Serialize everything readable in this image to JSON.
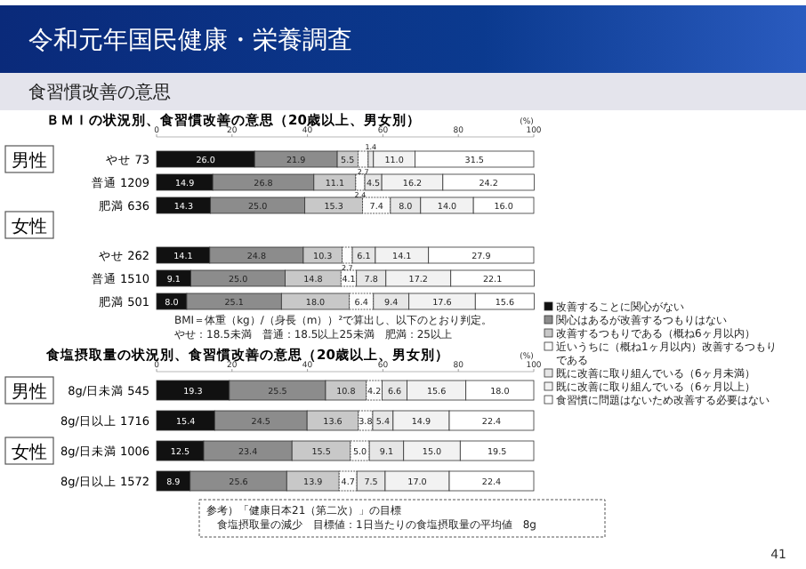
{
  "chart_data": [
    {
      "type": "bar",
      "orientation": "horizontal",
      "stacked": true,
      "legend": "right",
      "title": "ＢＭＩの状況別、食習慣改善の意思（20歳以上、男女別）",
      "xlabel": "(%)",
      "xlim": [
        0,
        100
      ],
      "xticks": [
        0,
        20,
        40,
        60,
        80,
        100
      ],
      "categories": [
        "やせ 73",
        "普通 1209",
        "肥満 636",
        "やせ 262",
        "普通 1510",
        "肥満 501"
      ],
      "series": [
        {
          "name": "改善することに関心がない",
          "color": "#111111",
          "values": [
            26.0,
            14.9,
            14.3,
            14.1,
            9.1,
            8.0
          ],
          "value_labels": [
            "26.0",
            "14.9",
            "14.3",
            "14.1",
            "9.1",
            "8.0"
          ]
        },
        {
          "name": "関心はあるが改善するつもりはない",
          "color": "#8c8c8c",
          "values": [
            21.9,
            26.8,
            25.0,
            24.8,
            25.0,
            25.1
          ],
          "value_labels": [
            "21.9",
            "26.8",
            "25.0",
            "24.8",
            "25.0",
            "25.1"
          ]
        },
        {
          "name": "改善するつもりである（概ね6ヶ月以内）",
          "color": "#c8c8c8",
          "values": [
            5.5,
            11.1,
            15.3,
            10.3,
            14.8,
            18.0
          ],
          "value_labels": [
            "5.5",
            "11.1",
            "15.3",
            "10.3",
            "14.8",
            "18.0"
          ]
        },
        {
          "name": "近いうちに（概ね1ヶ月以内）改善するつもりである",
          "color": "#fcfcfc",
          "values": [
            2.7,
            2.4,
            7.4,
            2.7,
            4.1,
            6.4
          ],
          "value_labels": [
            "2.7",
            "2.4",
            "7.4",
            "2.7",
            "4.1",
            "6.4"
          ]
        },
        {
          "name": "既に改善に取り組んでいる（6ヶ月未満）",
          "color": "#e6e6e6",
          "values": [
            1.4,
            4.5,
            8.0,
            6.1,
            7.8,
            9.4
          ],
          "value_labels": [
            "1.4",
            "4.5",
            "8.0",
            "6.1",
            "7.8",
            "9.4"
          ]
        },
        {
          "name": "既に改善に取り組んでいる（6ヶ月以上）",
          "color": "#f2f2f2",
          "values": [
            11.0,
            16.2,
            14.0,
            14.1,
            17.2,
            17.6
          ],
          "value_labels": [
            "11.0",
            "16.2",
            "14.0",
            "14.1",
            "17.2",
            "17.6"
          ]
        },
        {
          "name": "食習慣に問題はないため改善する必要はない",
          "color": "#ffffff",
          "values": [
            31.5,
            24.2,
            16.0,
            27.9,
            22.1,
            15.6
          ],
          "value_labels": [
            "31.5",
            "24.2",
            "16.0",
            "27.9",
            "22.1",
            "15.6"
          ]
        }
      ],
      "annotations": [
        "令和元年国民健康・栄養調査",
        "食習慣改善の意思",
        "男性",
        "女性",
        "BMI＝体重（kg）/（身長（m））²で算出し、以下のとおり判定。",
        "やせ：18.5未満　普通：18.5以上25未満　肥満：25以上"
      ]
    },
    {
      "type": "bar",
      "orientation": "horizontal",
      "stacked": true,
      "title": "食塩摂取量の状況別、食習慣改善の意思（20歳以上、男女別）",
      "xlabel": "(%)",
      "xlim": [
        0,
        100
      ],
      "xticks": [
        0,
        20,
        40,
        60,
        80,
        100
      ],
      "categories": [
        "8g/日未満 545",
        "8g/日以上 1716",
        "8g/日未満 1006",
        "8g/日以上 1572"
      ],
      "series": [
        {
          "color": "#111111",
          "values": [
            19.3,
            15.4,
            12.5,
            8.9
          ],
          "value_labels": [
            "19.3",
            "15.4",
            "12.5",
            "8.9"
          ]
        },
        {
          "color": "#8c8c8c",
          "values": [
            25.5,
            24.5,
            23.4,
            25.6
          ],
          "value_labels": [
            "25.5",
            "24.5",
            "23.4",
            "25.6"
          ]
        },
        {
          "color": "#c8c8c8",
          "values": [
            10.8,
            13.6,
            15.5,
            13.9
          ],
          "value_labels": [
            "10.8",
            "13.6",
            "15.5",
            "13.9"
          ]
        },
        {
          "color": "#fcfcfc",
          "values": [
            4.2,
            3.8,
            5.0,
            4.7
          ],
          "value_labels": [
            "4.2",
            "3.8",
            "5.0",
            "4.7"
          ]
        },
        {
          "color": "#e6e6e6",
          "values": [
            6.6,
            5.4,
            9.1,
            7.5
          ],
          "value_labels": [
            "6.6",
            "5.4",
            "9.1",
            "7.5"
          ]
        },
        {
          "color": "#f2f2f2",
          "values": [
            15.6,
            14.9,
            15.0,
            17.0
          ],
          "value_labels": [
            "15.6",
            "14.9",
            "15.0",
            "17.0"
          ]
        },
        {
          "color": "#ffffff",
          "values": [
            18.0,
            22.4,
            19.5,
            22.4
          ],
          "value_labels": [
            "18.0",
            "22.4",
            "19.5",
            "22.4"
          ]
        }
      ],
      "annotations": [
        "男性",
        "女性",
        "参考）「健康日本21（第二次）」の目標",
        "食塩摂取量の減少　目標値：1日当たりの食塩摂取量の平均値　8g",
        "41"
      ]
    }
  ]
}
